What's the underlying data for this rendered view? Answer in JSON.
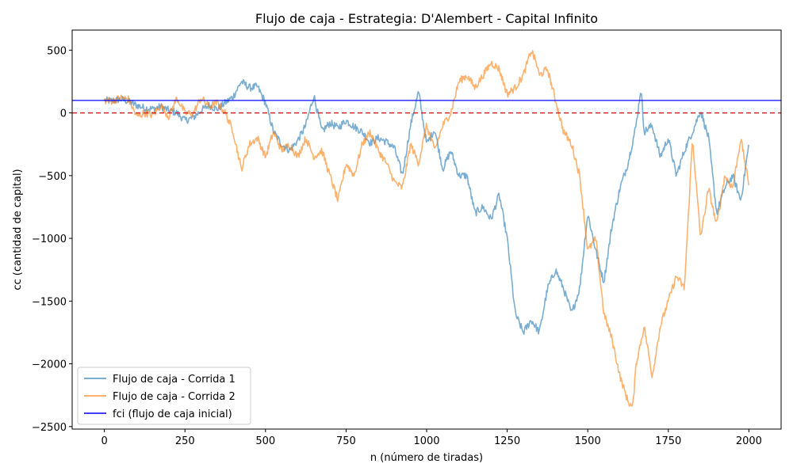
{
  "chart_data": {
    "type": "line",
    "title": "Flujo de caja - Estrategia: D'Alembert - Capital Infinito",
    "xlabel": "n (número de tiradas)",
    "ylabel": "cc (cantidad de capital)",
    "xlim": [
      -100,
      2100
    ],
    "ylim": [
      -2520,
      660
    ],
    "xticks": [
      0,
      250,
      500,
      750,
      1000,
      1250,
      1500,
      1750,
      2000
    ],
    "xtick_labels": [
      "0",
      "250",
      "500",
      "750",
      "1000",
      "1250",
      "1500",
      "1750",
      "2000"
    ],
    "yticks": [
      500,
      0,
      -500,
      -1000,
      -1500,
      -2000,
      -2500
    ],
    "ytick_labels": [
      "500",
      "0",
      "−500",
      "−1000",
      "−1500",
      "−2000",
      "−2500"
    ],
    "grid": false,
    "legend_position": "lower-left",
    "series": [
      {
        "name": "Flujo de caja - Corrida 1",
        "color": "#1f77b4",
        "opacity": 0.6,
        "x": [
          0,
          25,
          50,
          75,
          100,
          125,
          150,
          175,
          200,
          225,
          250,
          275,
          300,
          325,
          350,
          375,
          400,
          425,
          450,
          475,
          500,
          525,
          550,
          575,
          600,
          625,
          650,
          675,
          700,
          725,
          750,
          775,
          800,
          825,
          850,
          875,
          900,
          925,
          950,
          975,
          1000,
          1025,
          1050,
          1075,
          1100,
          1125,
          1150,
          1175,
          1200,
          1225,
          1250,
          1275,
          1300,
          1325,
          1350,
          1375,
          1400,
          1425,
          1450,
          1475,
          1500,
          1525,
          1550,
          1575,
          1600,
          1625,
          1650,
          1665,
          1675,
          1700,
          1725,
          1750,
          1775,
          1800,
          1825,
          1850,
          1875,
          1900,
          1925,
          1950,
          1975,
          2000
        ],
        "y": [
          100,
          95,
          110,
          90,
          60,
          40,
          30,
          50,
          20,
          0,
          -60,
          -40,
          20,
          60,
          30,
          80,
          130,
          250,
          200,
          210,
          80,
          -150,
          -250,
          -300,
          -220,
          -100,
          140,
          -150,
          -80,
          -120,
          -60,
          -110,
          -150,
          -240,
          -200,
          -230,
          -280,
          -500,
          -100,
          170,
          -250,
          -130,
          -450,
          -300,
          -500,
          -500,
          -800,
          -750,
          -850,
          -650,
          -1000,
          -1600,
          -1750,
          -1650,
          -1750,
          -1400,
          -1250,
          -1400,
          -1600,
          -1400,
          -800,
          -1100,
          -1350,
          -900,
          -600,
          -400,
          -100,
          200,
          -150,
          -100,
          -350,
          -200,
          -500,
          -300,
          -150,
          20,
          -200,
          -800,
          -600,
          -500,
          -700,
          -250
        ]
      },
      {
        "name": "Flujo de caja - Corrida 2",
        "color": "#ff7f0e",
        "opacity": 0.6,
        "x": [
          0,
          25,
          50,
          75,
          100,
          125,
          150,
          175,
          200,
          225,
          250,
          275,
          300,
          325,
          350,
          375,
          400,
          425,
          450,
          475,
          500,
          525,
          550,
          575,
          600,
          625,
          650,
          675,
          700,
          725,
          750,
          775,
          800,
          825,
          850,
          875,
          900,
          925,
          950,
          975,
          1000,
          1025,
          1050,
          1075,
          1100,
          1125,
          1150,
          1175,
          1200,
          1225,
          1250,
          1275,
          1300,
          1325,
          1340,
          1350,
          1375,
          1400,
          1425,
          1450,
          1475,
          1500,
          1525,
          1550,
          1575,
          1600,
          1625,
          1640,
          1650,
          1675,
          1700,
          1725,
          1750,
          1775,
          1800,
          1825,
          1850,
          1875,
          1900,
          1925,
          1950,
          1975,
          2000
        ],
        "y": [
          100,
          95,
          120,
          110,
          -30,
          0,
          -20,
          60,
          -30,
          120,
          0,
          -10,
          120,
          50,
          80,
          0,
          -150,
          -450,
          -250,
          -200,
          -350,
          -150,
          -300,
          -250,
          -350,
          -200,
          -350,
          -300,
          -500,
          -700,
          -400,
          -500,
          -250,
          -150,
          -300,
          -400,
          -550,
          -600,
          -250,
          -400,
          -100,
          -300,
          -100,
          0,
          250,
          300,
          200,
          300,
          400,
          350,
          150,
          200,
          300,
          500,
          400,
          300,
          350,
          100,
          -150,
          -250,
          -500,
          -1100,
          -1000,
          -1600,
          -1800,
          -2100,
          -2300,
          -2350,
          -2000,
          -1700,
          -2100,
          -1700,
          -1500,
          -1300,
          -1400,
          -200,
          -1000,
          -600,
          -900,
          -500,
          -600,
          -200,
          -580
        ]
      },
      {
        "name": "fci (flujo de caja inicial)",
        "color": "#0000ff",
        "opacity": 0.75,
        "x": [
          -100,
          2100
        ],
        "y": [
          100,
          100
        ]
      }
    ],
    "reference_lines": [
      {
        "type": "horizontal",
        "y": 0,
        "color": "#d62728",
        "style": "dashed"
      }
    ]
  }
}
